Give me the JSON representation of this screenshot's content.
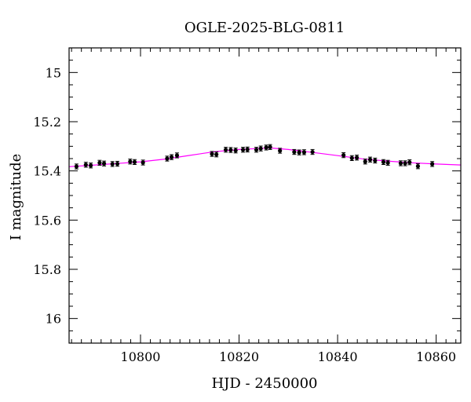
{
  "chart_data": {
    "type": "scatter",
    "title": "OGLE-2025-BLG-0811",
    "xlabel": "HJD - 2450000",
    "ylabel": "I magnitude",
    "xlim": [
      10785.5,
      10865
    ],
    "ylim": [
      16.1,
      14.9
    ],
    "y_inverted": true,
    "grid": false,
    "x_ticks": [
      10800,
      10820,
      10840,
      10860
    ],
    "x_tick_labels": [
      "10800",
      "10820",
      "10840",
      "10860"
    ],
    "y_ticks": [
      15,
      15.2,
      15.4,
      15.6,
      15.8,
      16
    ],
    "y_tick_labels": [
      "15",
      "15.2",
      "15.4",
      "15.6",
      "15.8",
      "16"
    ],
    "x_minor_step": 2,
    "y_minor_step": 0.05,
    "series": [
      {
        "kind": "points",
        "color": "#000000",
        "x": [
          10787.0,
          10788.9,
          10789.9,
          10791.7,
          10792.6,
          10794.3,
          10795.3,
          10797.9,
          10798.8,
          10800.5,
          10805.4,
          10806.3,
          10807.4,
          10814.5,
          10815.4,
          10817.3,
          10818.3,
          10819.3,
          10820.8,
          10821.7,
          10823.5,
          10824.4,
          10825.5,
          10826.3,
          10828.3,
          10831.2,
          10832.2,
          10833.2,
          10834.9,
          10841.2,
          10842.9,
          10843.9,
          10845.6,
          10846.6,
          10847.6,
          10849.3,
          10850.2,
          10852.8,
          10853.7,
          10854.6,
          10856.3,
          10859.2
        ],
        "y": [
          15.382,
          15.375,
          15.378,
          15.367,
          15.37,
          15.372,
          15.371,
          15.362,
          15.364,
          15.366,
          15.35,
          15.344,
          15.337,
          15.331,
          15.333,
          15.314,
          15.315,
          15.317,
          15.314,
          15.313,
          15.314,
          15.309,
          15.305,
          15.303,
          15.318,
          15.323,
          15.325,
          15.324,
          15.323,
          15.336,
          15.348,
          15.346,
          15.362,
          15.354,
          15.358,
          15.364,
          15.367,
          15.369,
          15.369,
          15.365,
          15.381,
          15.372
        ],
        "err": [
          0.01,
          0.01,
          0.01,
          0.01,
          0.01,
          0.01,
          0.01,
          0.01,
          0.01,
          0.01,
          0.01,
          0.01,
          0.01,
          0.01,
          0.01,
          0.01,
          0.01,
          0.01,
          0.01,
          0.01,
          0.01,
          0.01,
          0.01,
          0.01,
          0.01,
          0.01,
          0.01,
          0.01,
          0.01,
          0.01,
          0.01,
          0.01,
          0.01,
          0.01,
          0.01,
          0.01,
          0.01,
          0.01,
          0.01,
          0.01,
          0.01,
          0.01
        ]
      },
      {
        "kind": "model-line",
        "color": "#ff00ff",
        "x": [
          10785.5,
          10790,
          10795,
          10800,
          10805,
          10810,
          10815,
          10820,
          10825,
          10826.5,
          10830,
          10835,
          10840,
          10845,
          10850,
          10855,
          10860,
          10865
        ],
        "y": [
          15.383,
          15.377,
          15.37,
          15.363,
          15.352,
          15.337,
          15.322,
          15.313,
          15.308,
          15.307,
          15.313,
          15.325,
          15.338,
          15.351,
          15.36,
          15.367,
          15.372,
          15.376
        ]
      }
    ]
  }
}
